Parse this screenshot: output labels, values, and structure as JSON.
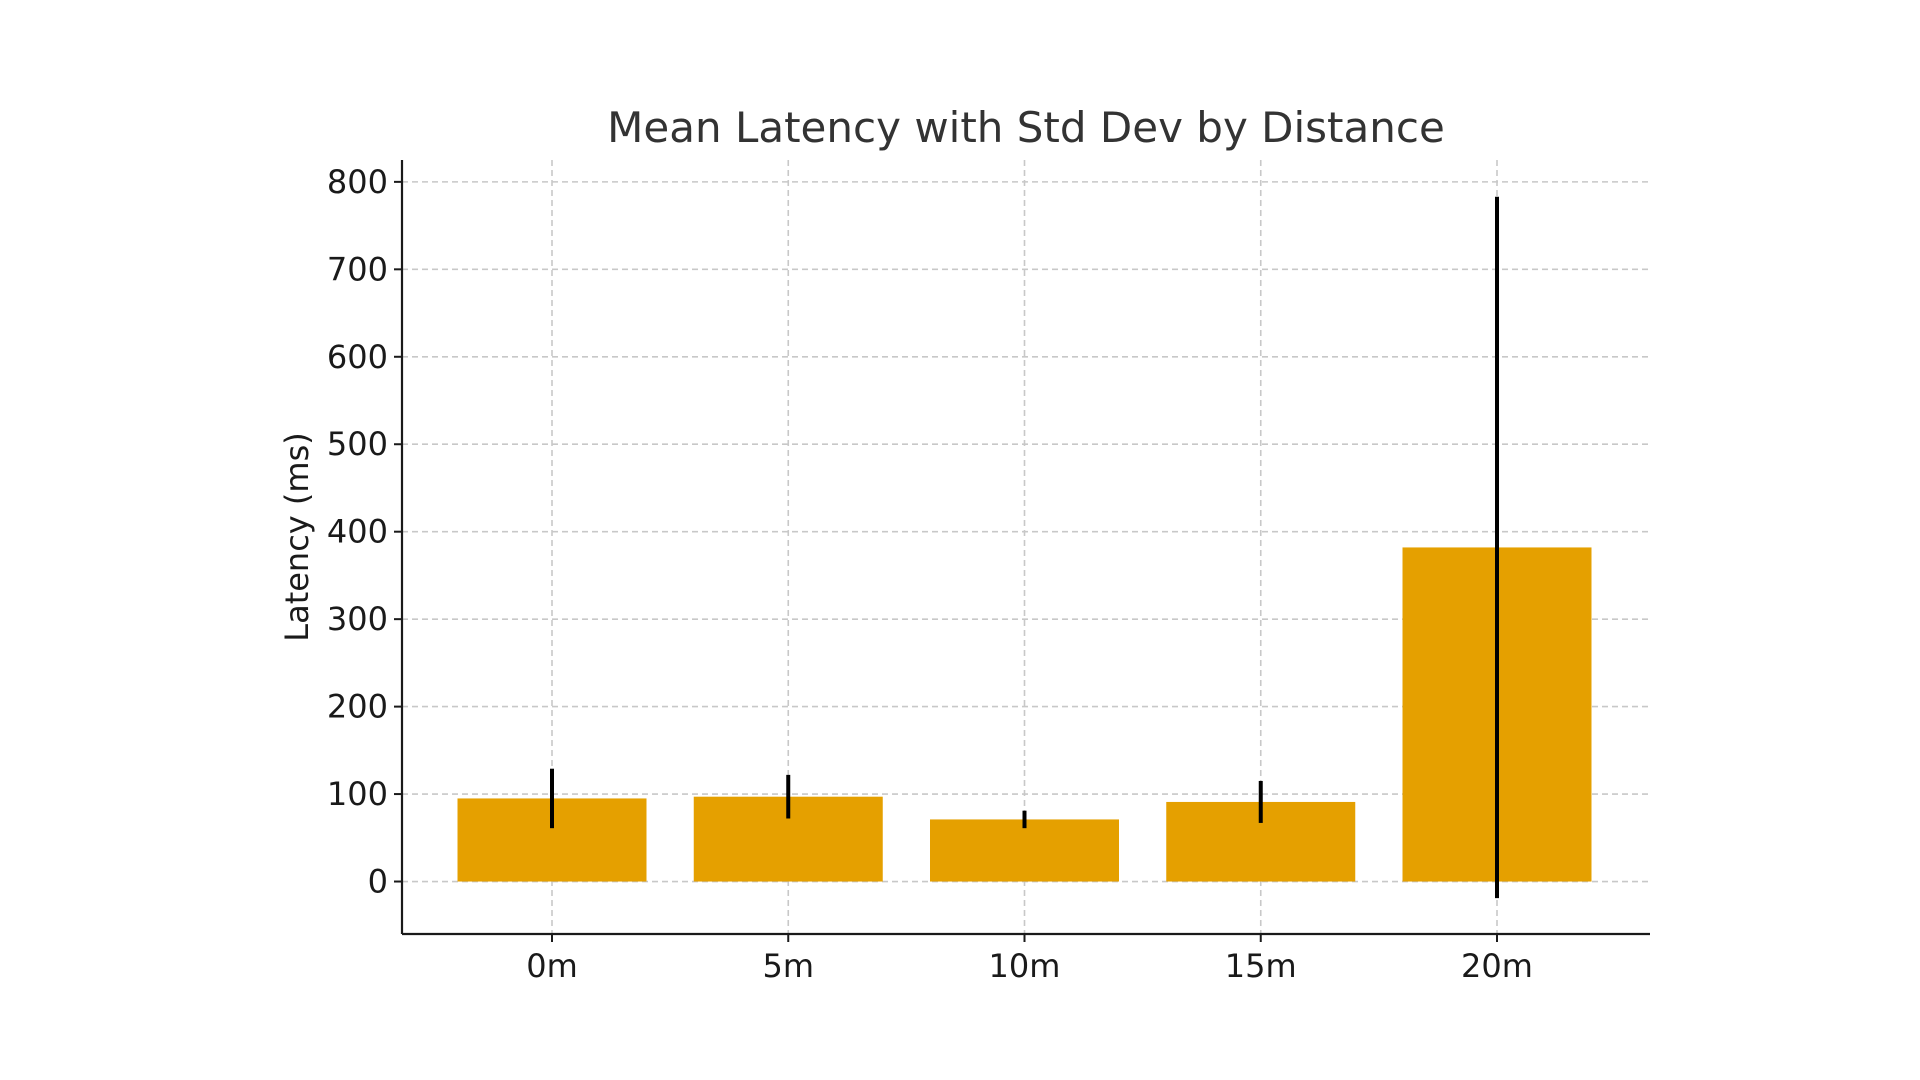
{
  "chart_data": {
    "type": "bar",
    "title": "Mean Latency with Std Dev by Distance",
    "xlabel": "",
    "ylabel": "Latency (ms)",
    "categories": [
      "0m",
      "5m",
      "10m",
      "15m",
      "20m"
    ],
    "values": [
      95,
      97,
      71,
      91,
      382
    ],
    "errors": [
      34,
      25,
      10,
      24,
      401
    ],
    "ylim": [
      -60,
      825
    ],
    "yticks": [
      0,
      100,
      200,
      300,
      400,
      500,
      600,
      700,
      800
    ],
    "grid": true,
    "bar_color": "#E5A000",
    "error_color": "#000000"
  }
}
